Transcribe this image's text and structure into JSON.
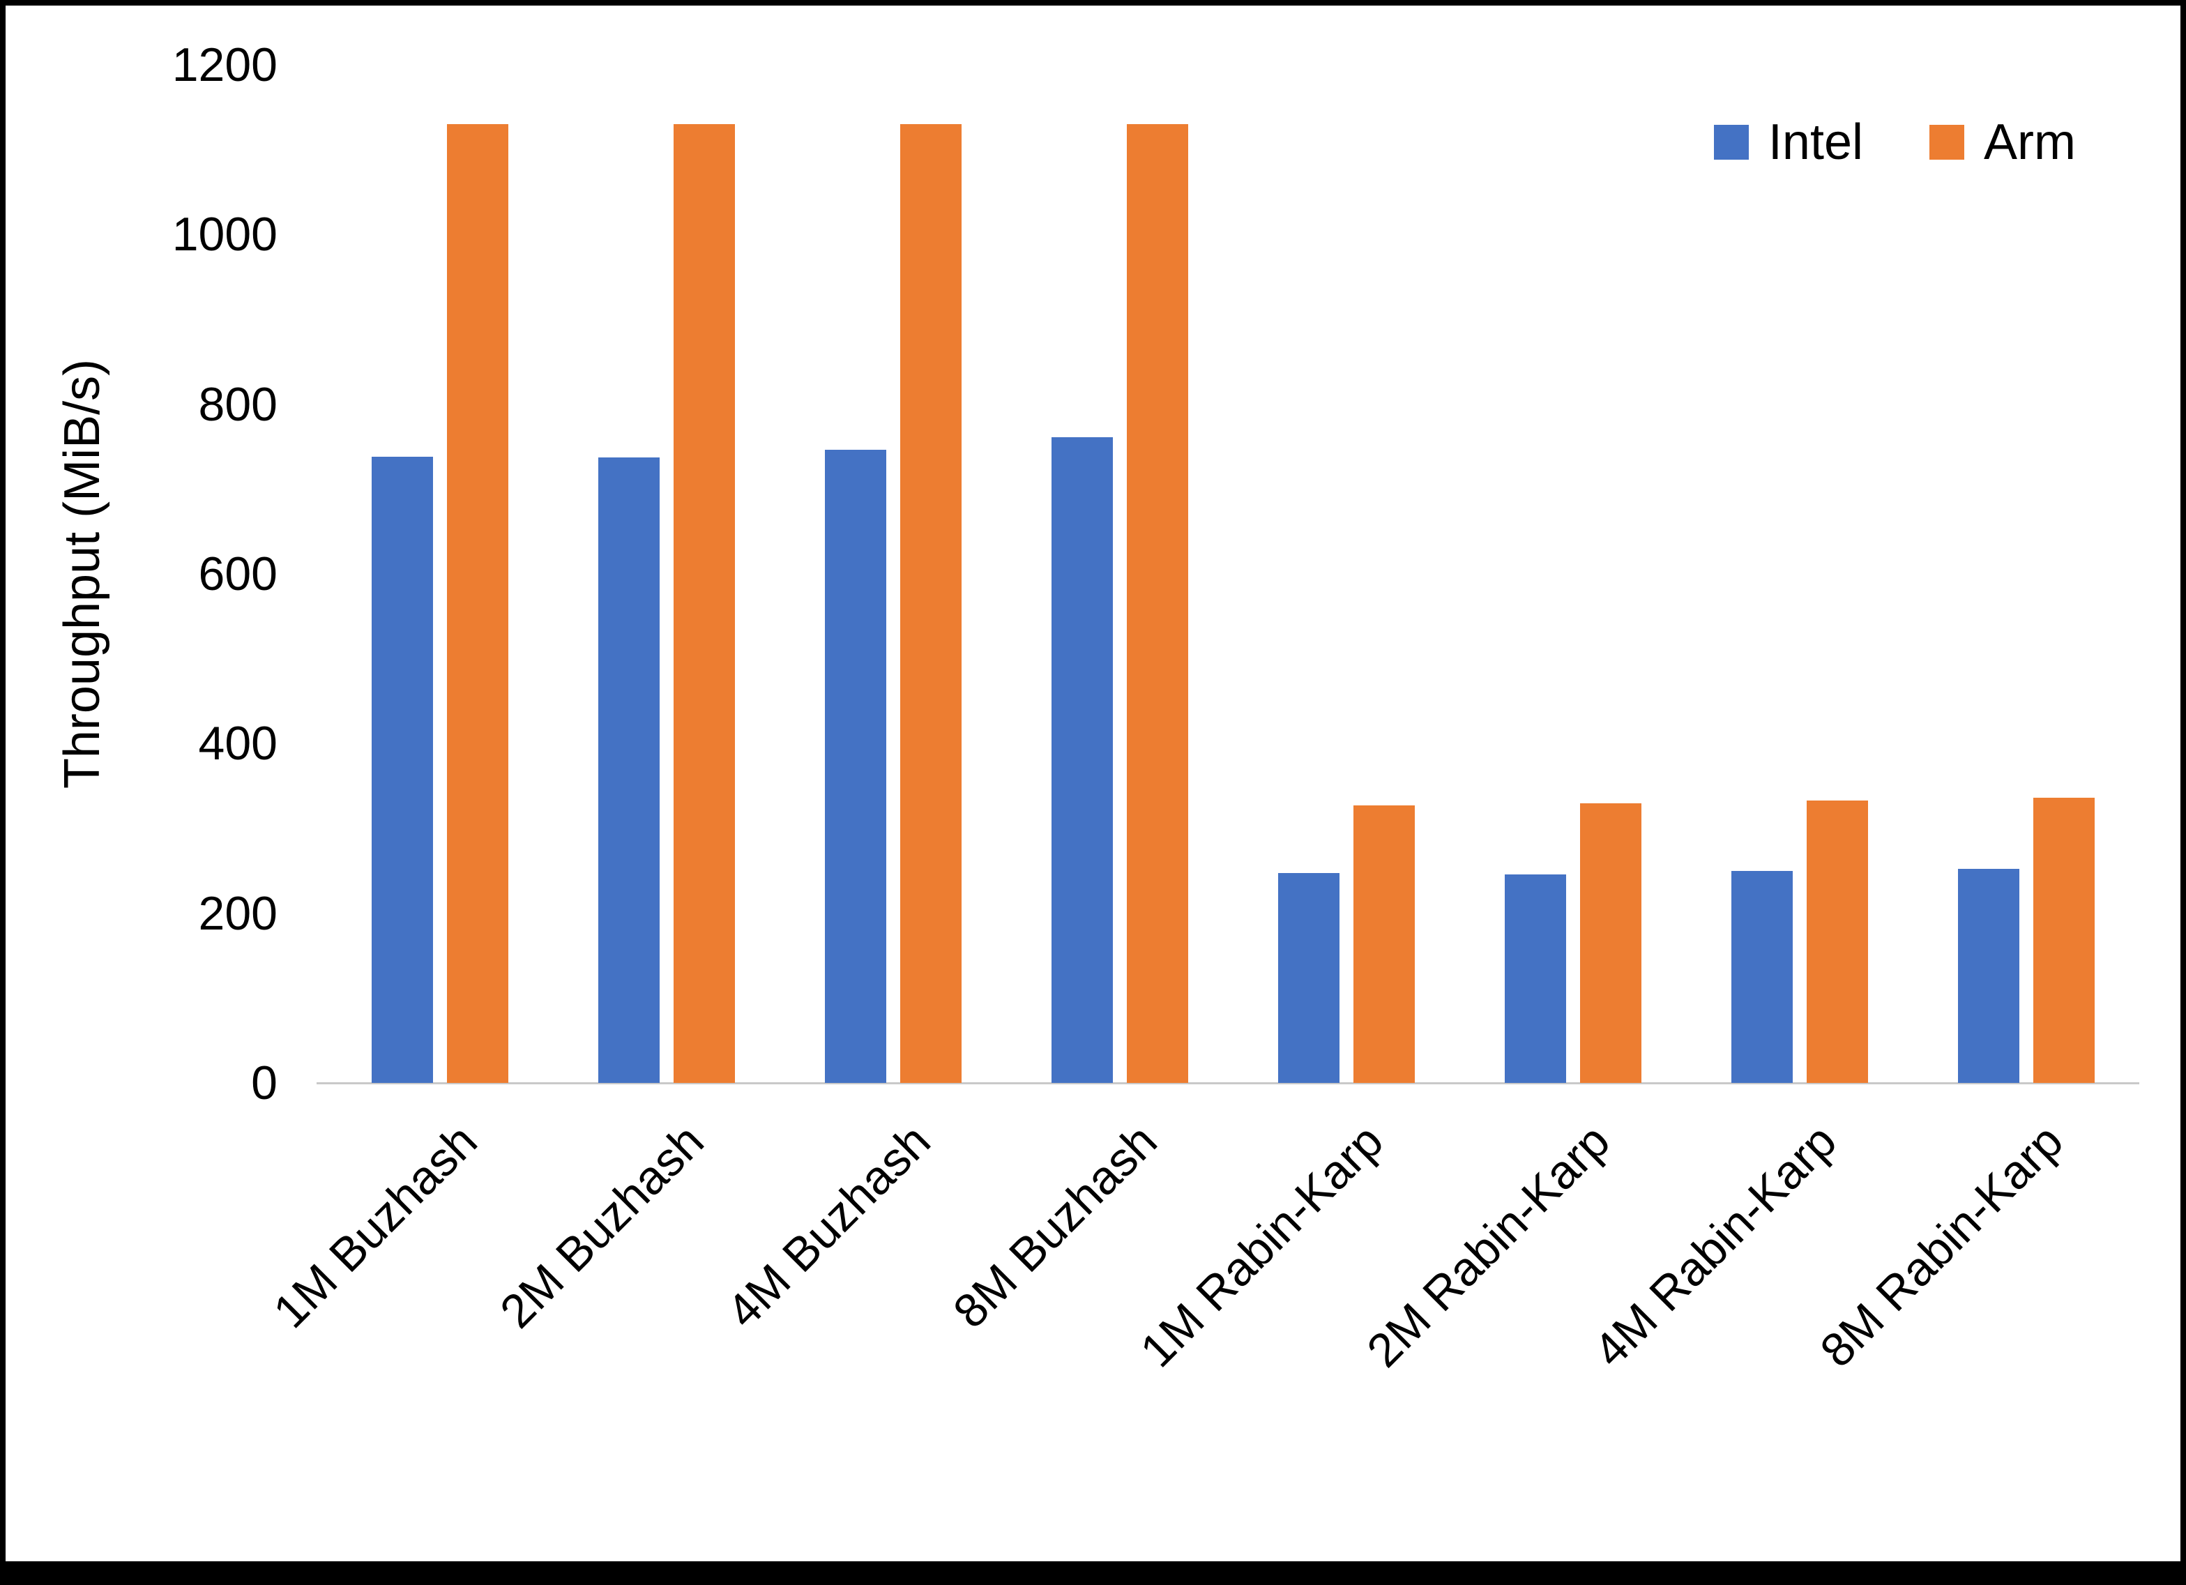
{
  "chart_data": {
    "type": "bar",
    "title": "",
    "xlabel": "",
    "ylabel": "Throughput (MiB/s)",
    "ylim": [
      0,
      1200
    ],
    "y_ticks": [
      0,
      200,
      400,
      600,
      800,
      1000,
      1200
    ],
    "grid": false,
    "legend_position": "top-right",
    "categories": [
      "1M Buzhash",
      "2M Buzhash",
      "4M Buzhash",
      "8M Buzhash",
      "1M Rabin-Karp",
      "2M Rabin-Karp",
      "4M Rabin-Karp",
      "8M Rabin-Karp"
    ],
    "series": [
      {
        "name": "Intel",
        "color": "#4472C4",
        "values": [
          738,
          737,
          746,
          761,
          247,
          246,
          250,
          252
        ]
      },
      {
        "name": "Arm",
        "color": "#ED7D31",
        "values": [
          1130,
          1130,
          1130,
          1130,
          327,
          330,
          333,
          336
        ]
      }
    ]
  }
}
